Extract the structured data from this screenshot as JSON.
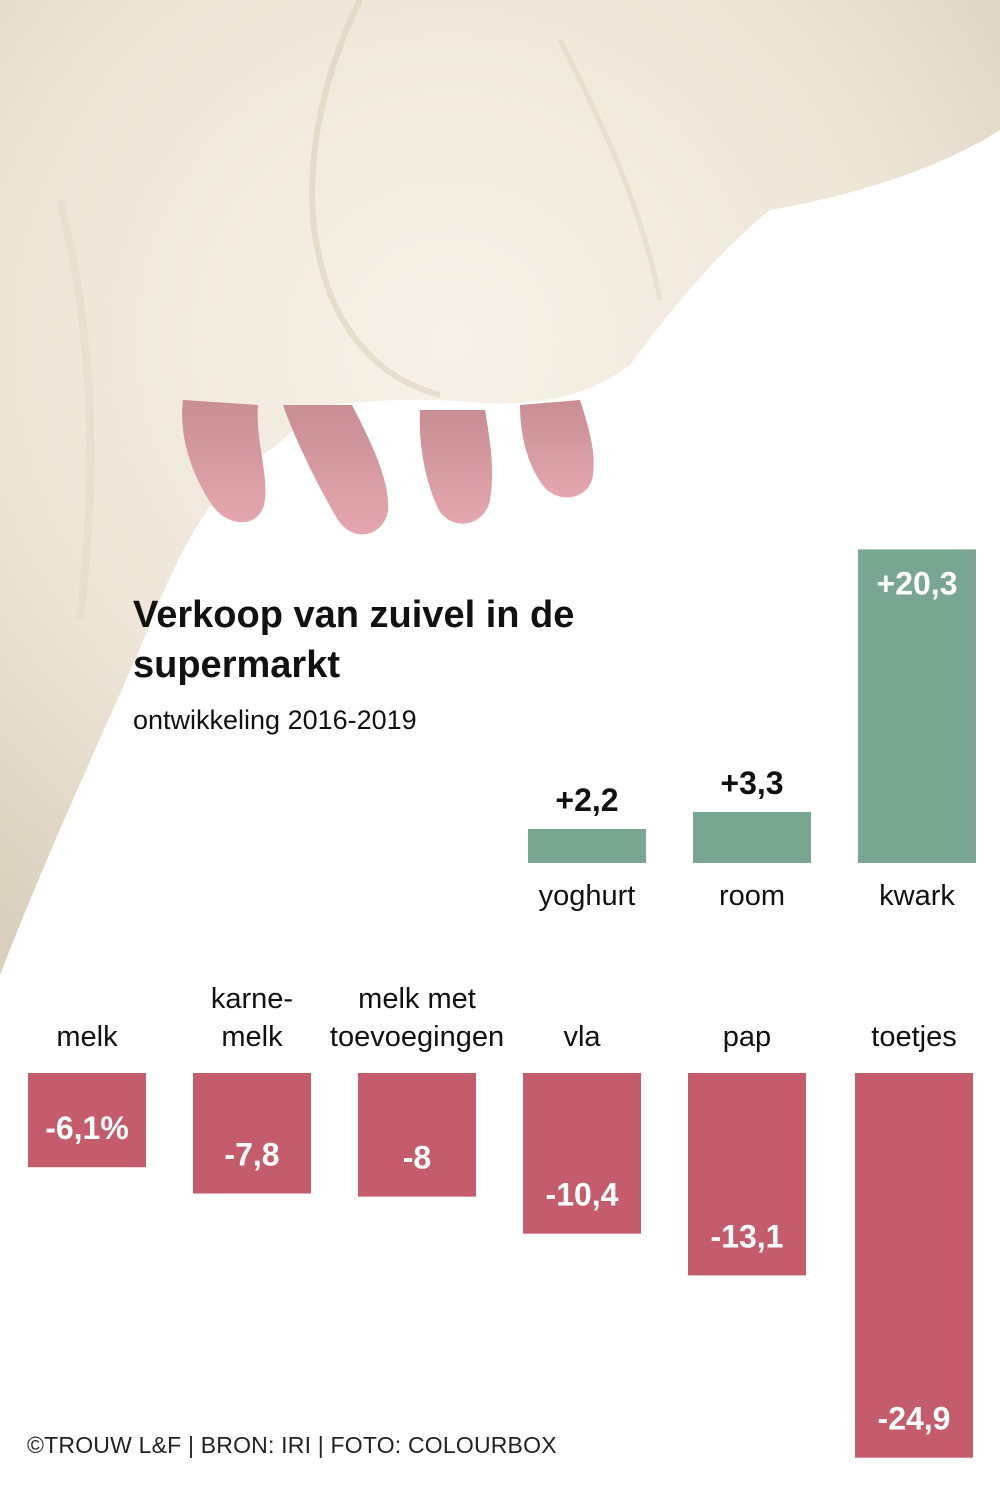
{
  "title": "Verkoop van zuivel in de supermarkt",
  "subtitle": "ontwikkeling 2016-2019",
  "source": "©TROUW L&F | BRON: IRI | FOTO: COLOURBOX",
  "colors": {
    "positive": "#78a690",
    "negative": "#c45c6c",
    "text": "#111111"
  },
  "photo": {
    "subject": "cow udder",
    "icon": "cow-udder-photo"
  },
  "chart_data": {
    "type": "bar",
    "unit": "%",
    "categories": [
      "yoghurt",
      "room",
      "kwark",
      "melk",
      "karne-melk",
      "melk met toevoegingen",
      "vla",
      "pap",
      "toetjes"
    ],
    "values": [
      2.2,
      3.3,
      20.3,
      -6.1,
      -7.8,
      -8,
      -10.4,
      -13.1,
      -24.9
    ],
    "labels": [
      "+2,2",
      "+3,3",
      "+20,3",
      "-6,1%",
      "-7,8",
      "-8",
      "-10,4",
      "-13,1",
      "-24,9"
    ],
    "category_lines": [
      [
        "yoghurt"
      ],
      [
        "room"
      ],
      [
        "kwark"
      ],
      [
        "melk"
      ],
      [
        "karne-",
        "melk"
      ],
      [
        "melk met",
        "toevoegingen"
      ],
      [
        "vla"
      ],
      [
        "pap"
      ],
      [
        "toetjes"
      ]
    ]
  }
}
